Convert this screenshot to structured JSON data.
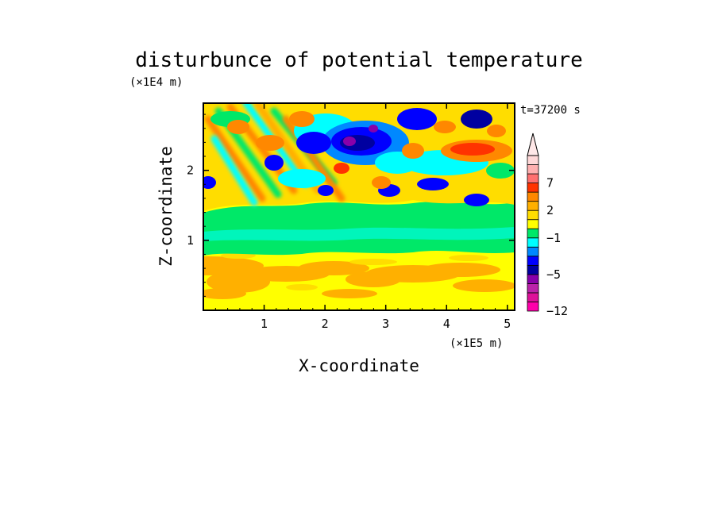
{
  "chart_data": {
    "type": "heatmap",
    "title": "disturbunce of potential temperature",
    "xlabel": "X-coordinate",
    "ylabel": "Z-coordinate",
    "x_scale_label": "(×1E5 m)",
    "y_scale_label": "(×1E4 m)",
    "time_label": "t=37200 s",
    "xlim": [
      0,
      5.12
    ],
    "ylim": [
      0,
      2.96
    ],
    "x_ticks": [
      "1",
      "2",
      "3",
      "4",
      "5"
    ],
    "y_ticks": [
      "1",
      "2"
    ],
    "grid": false,
    "colorbar": {
      "placement": "right",
      "labels": [
        "7",
        "2",
        "−1",
        "−5",
        "−12"
      ],
      "levels": [
        -12,
        -10,
        -8,
        -6,
        -5,
        -4,
        -3,
        -2,
        -1,
        0,
        1,
        2,
        3,
        5,
        7,
        9,
        11
      ],
      "colors": [
        "#ff00aa",
        "#dd1199",
        "#bb22aa",
        "#8800aa",
        "#0000a0",
        "#0000ff",
        "#0088ff",
        "#00ffff",
        "#00e868",
        "#ffff00",
        "#ffdd00",
        "#ffb000",
        "#ff8800",
        "#ff3300",
        "#ff7070",
        "#ffb0b0",
        "#ffd8d8"
      ],
      "extend": "max"
    },
    "regions": [
      {
        "zone": "lower layer",
        "z_range": [
          0,
          0.95
        ],
        "dominant_value": 0.5,
        "color": "#ffff00"
      },
      {
        "zone": "lower warm patches",
        "z_range": [
          0.3,
          0.65
        ],
        "dominant_value": 1.5,
        "color": "#ffb000"
      },
      {
        "zone": "middle layer",
        "z_range": [
          0.95,
          1.4
        ],
        "dominant_value": -0.5,
        "color": "#00e868"
      },
      {
        "zone": "upper layer",
        "z_range": [
          1.4,
          2.96
        ],
        "dominant_value_range": [
          -6,
          5
        ]
      }
    ]
  }
}
